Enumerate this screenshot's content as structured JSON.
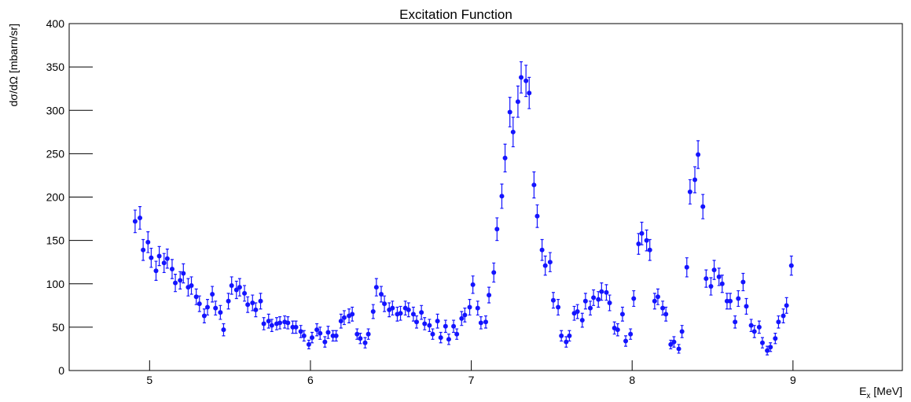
{
  "chart_data": {
    "type": "scatter",
    "title": "Excitation Function",
    "ylabel": "dσ/dΩ [mbarn/sr]",
    "xlabel": {
      "main": "E",
      "sub": "x",
      "unit": "[MeV]"
    },
    "xlim": [
      4.5,
      9.68
    ],
    "ylim": [
      0,
      400
    ],
    "xticks": [
      5,
      6,
      7,
      8,
      9
    ],
    "yticks": [
      0,
      50,
      100,
      150,
      200,
      250,
      300,
      350,
      400
    ],
    "grid": false,
    "series": [
      {
        "color": "#1414ff",
        "x": [
          4.91,
          4.94,
          4.96,
          4.99,
          5.01,
          5.04,
          5.06,
          5.09,
          5.11,
          5.14,
          5.16,
          5.19,
          5.21,
          5.24,
          5.26,
          5.29,
          5.31,
          5.34,
          5.36,
          5.39,
          5.41,
          5.44,
          5.46,
          5.49,
          5.51,
          5.54,
          5.56,
          5.59,
          5.61,
          5.64,
          5.66,
          5.69,
          5.71,
          5.74,
          5.76,
          5.79,
          5.81,
          5.84,
          5.86,
          5.89,
          5.91,
          5.94,
          5.96,
          5.99,
          6.01,
          6.04,
          6.06,
          6.09,
          6.11,
          6.14,
          6.16,
          6.19,
          6.21,
          6.24,
          6.26,
          6.29,
          6.31,
          6.34,
          6.36,
          6.39,
          6.41,
          6.44,
          6.46,
          6.49,
          6.51,
          6.54,
          6.56,
          6.59,
          6.61,
          6.64,
          6.66,
          6.69,
          6.71,
          6.74,
          6.76,
          6.79,
          6.81,
          6.84,
          6.86,
          6.89,
          6.91,
          6.94,
          6.96,
          6.99,
          7.01,
          7.04,
          7.06,
          7.09,
          7.11,
          7.14,
          7.16,
          7.19,
          7.21,
          7.24,
          7.26,
          7.29,
          7.31,
          7.34,
          7.36,
          7.39,
          7.41,
          7.44,
          7.46,
          7.49,
          7.51,
          7.54,
          7.56,
          7.59,
          7.61,
          7.64,
          7.66,
          7.69,
          7.71,
          7.74,
          7.76,
          7.79,
          7.81,
          7.84,
          7.86,
          7.89,
          7.91,
          7.94,
          7.96,
          7.99,
          8.01,
          8.04,
          8.06,
          8.09,
          8.11,
          8.14,
          8.16,
          8.19,
          8.21,
          8.24,
          8.26,
          8.29,
          8.31,
          8.34,
          8.36,
          8.39,
          8.41,
          8.44,
          8.46,
          8.49,
          8.51,
          8.54,
          8.56,
          8.59,
          8.61,
          8.64,
          8.66,
          8.69,
          8.71,
          8.74,
          8.76,
          8.79,
          8.81,
          8.84,
          8.86,
          8.89,
          8.91,
          8.94,
          8.96,
          8.99
        ],
        "values": [
          172,
          176,
          139,
          148,
          130,
          115,
          132,
          124,
          129,
          117,
          101,
          104,
          112,
          96,
          98,
          85,
          77,
          63,
          73,
          88,
          72,
          67,
          47,
          80,
          98,
          93,
          96,
          89,
          76,
          78,
          70,
          80,
          54,
          57,
          52,
          54,
          55,
          56,
          55,
          50,
          50,
          45,
          40,
          30,
          38,
          47,
          43,
          33,
          44,
          40,
          40,
          57,
          61,
          63,
          65,
          42,
          37,
          32,
          42,
          68,
          96,
          88,
          77,
          70,
          72,
          65,
          66,
          72,
          70,
          65,
          56,
          67,
          54,
          52,
          42,
          57,
          38,
          51,
          36,
          51,
          42,
          60,
          64,
          73,
          99,
          72,
          55,
          56,
          87,
          113,
          163,
          201,
          245,
          298,
          275,
          310,
          338,
          334,
          320,
          214,
          178,
          139,
          121,
          125,
          81,
          73,
          40,
          33,
          40,
          66,
          68,
          58,
          80,
          72,
          84,
          82,
          91,
          90,
          78,
          49,
          47,
          65,
          34,
          42,
          83,
          146,
          158,
          150,
          139,
          80,
          85,
          72,
          65,
          30,
          33,
          25,
          45,
          119,
          206,
          220,
          249,
          189,
          106,
          97,
          116,
          108,
          100,
          80,
          80,
          56,
          83,
          102,
          74,
          52,
          45,
          50,
          32,
          23,
          27,
          37,
          56,
          63,
          75,
          121
        ],
        "errors": [
          13,
          13,
          12,
          12,
          11,
          11,
          11,
          11,
          11,
          11,
          10,
          10,
          11,
          10,
          10,
          9,
          9,
          8,
          9,
          9,
          8,
          8,
          7,
          9,
          10,
          10,
          10,
          9,
          9,
          9,
          8,
          9,
          7,
          8,
          7,
          7,
          7,
          7,
          7,
          7,
          7,
          7,
          6,
          5,
          6,
          7,
          7,
          6,
          7,
          6,
          6,
          8,
          8,
          8,
          8,
          6,
          6,
          6,
          6,
          8,
          10,
          9,
          9,
          8,
          8,
          8,
          8,
          8,
          8,
          8,
          7,
          8,
          7,
          7,
          6,
          8,
          6,
          7,
          6,
          7,
          6,
          8,
          8,
          9,
          10,
          8,
          7,
          7,
          9,
          11,
          13,
          14,
          16,
          17,
          17,
          18,
          18,
          18,
          18,
          15,
          13,
          12,
          11,
          11,
          9,
          9,
          6,
          6,
          6,
          8,
          8,
          8,
          9,
          8,
          9,
          9,
          10,
          9,
          9,
          7,
          7,
          8,
          6,
          6,
          9,
          12,
          13,
          12,
          12,
          9,
          9,
          8,
          8,
          5,
          6,
          5,
          7,
          11,
          14,
          15,
          16,
          14,
          10,
          10,
          11,
          10,
          10,
          9,
          9,
          7,
          9,
          10,
          9,
          7,
          7,
          7,
          6,
          5,
          5,
          6,
          7,
          8,
          9,
          11
        ]
      }
    ]
  }
}
